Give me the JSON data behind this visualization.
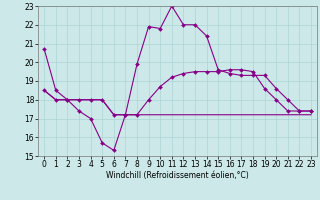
{
  "xlabel": "Windchill (Refroidissement éolien,°C)",
  "background_color": "#cce8e8",
  "grid_color": "#aad4d4",
  "line_color": "#880088",
  "xlim": [
    -0.5,
    23.5
  ],
  "ylim": [
    15,
    23
  ],
  "xticks": [
    0,
    1,
    2,
    3,
    4,
    5,
    6,
    7,
    8,
    9,
    10,
    11,
    12,
    13,
    14,
    15,
    16,
    17,
    18,
    19,
    20,
    21,
    22,
    23
  ],
  "yticks": [
    15,
    16,
    17,
    18,
    19,
    20,
    21,
    22,
    23
  ],
  "line1_x": [
    0,
    1,
    2,
    3,
    4,
    5,
    6,
    7,
    8,
    9,
    10,
    11,
    12,
    13,
    14,
    15,
    16,
    17,
    18,
    19,
    20,
    21,
    22,
    23
  ],
  "line1_y": [
    20.7,
    18.5,
    18.0,
    17.4,
    17.0,
    15.7,
    15.3,
    17.2,
    19.9,
    21.9,
    21.8,
    23.0,
    22.0,
    22.0,
    21.4,
    19.6,
    19.4,
    19.3,
    19.3,
    19.3,
    18.6,
    18.0,
    17.4,
    17.4
  ],
  "line2_x": [
    0,
    1,
    2,
    3,
    4,
    5,
    6,
    7,
    8,
    9,
    10,
    11,
    12,
    13,
    14,
    15,
    16,
    17,
    18,
    19,
    20,
    21,
    22,
    23
  ],
  "line2_y": [
    18.5,
    18.0,
    18.0,
    18.0,
    18.0,
    18.0,
    17.2,
    17.2,
    17.2,
    18.0,
    18.7,
    19.2,
    19.4,
    19.5,
    19.5,
    19.5,
    19.6,
    19.6,
    19.5,
    18.6,
    18.0,
    17.4,
    17.4,
    17.4
  ],
  "line3_x": [
    0,
    1,
    2,
    3,
    4,
    5,
    6,
    7,
    8,
    9,
    10,
    11,
    12,
    13,
    14,
    15,
    16,
    17,
    18,
    19,
    20,
    21,
    22,
    23
  ],
  "line3_y": [
    18.5,
    18.0,
    18.0,
    18.0,
    18.0,
    18.0,
    17.2,
    17.2,
    17.2,
    17.2,
    17.2,
    17.2,
    17.2,
    17.2,
    17.2,
    17.2,
    17.2,
    17.2,
    17.2,
    17.2,
    17.2,
    17.2,
    17.2,
    17.2
  ],
  "marker_size": 2.0,
  "line_width": 0.8,
  "tick_fontsize": 5.5,
  "xlabel_fontsize": 5.5
}
